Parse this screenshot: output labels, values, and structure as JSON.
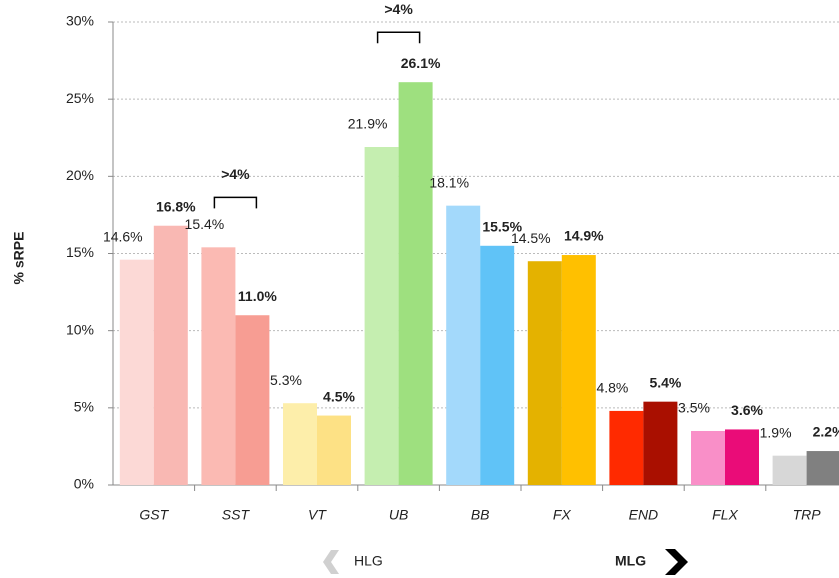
{
  "chart_data": {
    "type": "bar",
    "y_label": "% sRPE",
    "categories": [
      "GST",
      "SST",
      "VT",
      "UB",
      "BB",
      "FX",
      "END",
      "FLX",
      "TRP"
    ],
    "series": [
      {
        "name": "HLG",
        "values": [
          14.6,
          15.4,
          5.3,
          21.9,
          18.1,
          14.5,
          4.8,
          3.5,
          1.9
        ],
        "value_labels": [
          "14.6%",
          "15.4%",
          "5.3%",
          "21.9%",
          "18.1%",
          "14.5%",
          "4.8%",
          "3.5%",
          "1.9%"
        ],
        "colors": [
          "#fcd9d6",
          "#fbbab3",
          "#fdeeaa",
          "#c5eeb0",
          "#a3d9fb",
          "#e4b200",
          "#ff2a00",
          "#f98fc8",
          "#d7d7d7"
        ]
      },
      {
        "name": "MLG",
        "values": [
          16.8,
          11.0,
          4.5,
          26.1,
          15.5,
          14.9,
          5.4,
          3.6,
          2.2
        ],
        "value_labels": [
          "16.8%",
          "11.0%",
          "4.5%",
          "26.1%",
          "15.5%",
          "14.9%",
          "5.4%",
          "3.6%",
          "2.2%"
        ],
        "colors": [
          "#f9b8b3",
          "#f79d93",
          "#fde185",
          "#9ee07f",
          "#60c3f7",
          "#ffc000",
          "#a90f00",
          "#ea0c78",
          "#808080"
        ]
      }
    ],
    "ylim": [
      0,
      30
    ],
    "yticks": [
      {
        "value": 0,
        "label": "0%"
      },
      {
        "value": 5,
        "label": "5%"
      },
      {
        "value": 10,
        "label": "10%"
      },
      {
        "value": 15,
        "label": "15%"
      },
      {
        "value": 20,
        "label": "20%"
      },
      {
        "value": 25,
        "label": "25%"
      },
      {
        "value": 30,
        "label": "30%"
      }
    ],
    "grid": true,
    "annotations": [
      {
        "text": ">4%",
        "category": "SST"
      },
      {
        "text": ">4%",
        "category": "UB"
      }
    ]
  }
}
